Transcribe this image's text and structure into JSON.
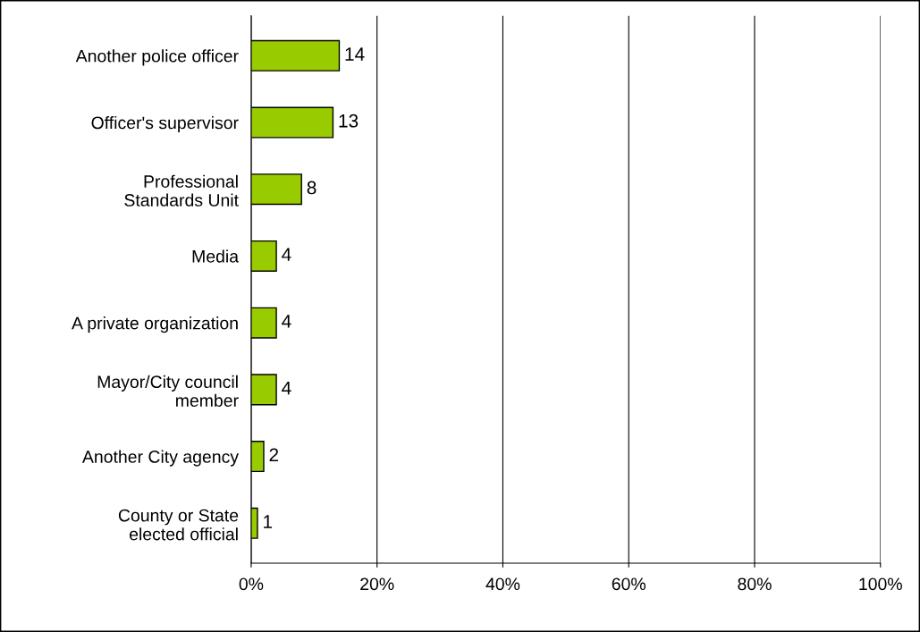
{
  "chart_data": {
    "type": "bar",
    "orientation": "horizontal",
    "categories": [
      "Another police officer",
      "Officer's supervisor",
      "Professional\nStandards Unit",
      "Media",
      "A private organization",
      "Mayor/City council\nmember",
      "Another City agency",
      "County or State\nelected official"
    ],
    "values": [
      14,
      13,
      8,
      4,
      4,
      4,
      2,
      1
    ],
    "color": "#99cc00",
    "xlim": [
      0,
      100
    ],
    "xticks": [
      {
        "value": 0,
        "label": "0%"
      },
      {
        "value": 20,
        "label": "20%"
      },
      {
        "value": 40,
        "label": "40%"
      },
      {
        "value": 60,
        "label": "60%"
      },
      {
        "value": 80,
        "label": "80%"
      },
      {
        "value": 100,
        "label": "100%"
      }
    ],
    "grid": "x",
    "data_labels": true,
    "legend": false
  }
}
